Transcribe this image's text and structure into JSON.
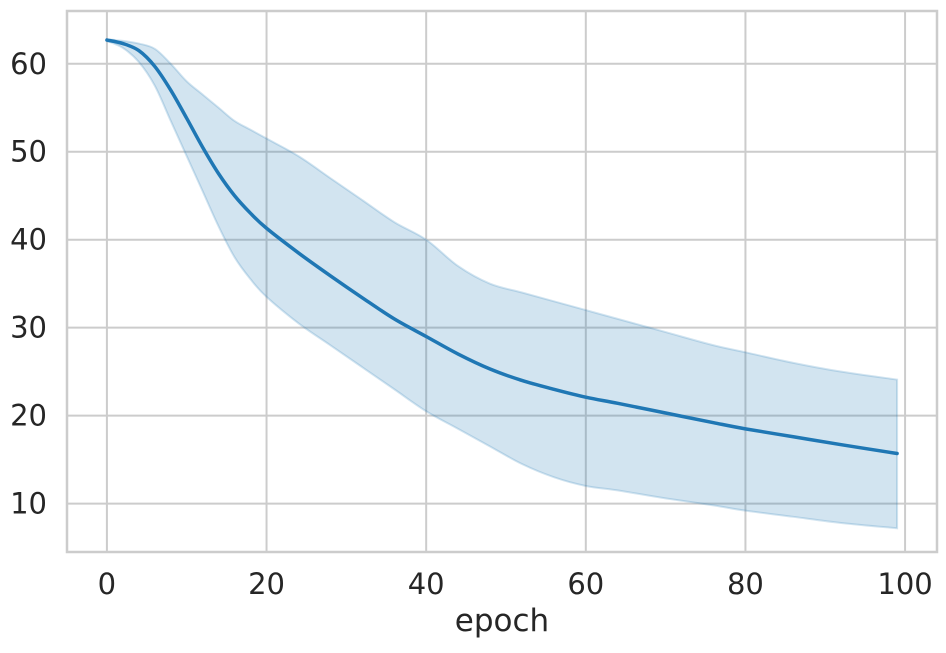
{
  "chart_data": {
    "type": "line",
    "title": "",
    "xlabel": "epoch",
    "ylabel": "",
    "xlim": [
      -5,
      104
    ],
    "ylim": [
      4.5,
      66
    ],
    "xticks": [
      0,
      20,
      40,
      60,
      80,
      100
    ],
    "yticks": [
      10,
      20,
      30,
      40,
      50,
      60
    ],
    "grid": true,
    "legend": "none",
    "series": [
      {
        "color": "#1f77b4",
        "band_color": "#1f77b4",
        "x": [
          0,
          2,
          4,
          6,
          8,
          10,
          12,
          14,
          16,
          18,
          20,
          24,
          28,
          32,
          36,
          40,
          44,
          48,
          52,
          56,
          60,
          64,
          70,
          76,
          80,
          86,
          92,
          99
        ],
        "y": [
          62.7,
          62.3,
          61.5,
          59.7,
          57.0,
          53.8,
          50.5,
          47.5,
          45.0,
          43.0,
          41.3,
          38.5,
          35.9,
          33.4,
          31.0,
          29.0,
          27.0,
          25.3,
          24.0,
          23.0,
          22.1,
          21.4,
          20.3,
          19.2,
          18.5,
          17.6,
          16.7,
          15.7
        ],
        "lower": [
          62.6,
          61.8,
          60.2,
          57.5,
          53.5,
          49.5,
          45.5,
          41.5,
          38.0,
          35.5,
          33.5,
          30.5,
          28.0,
          25.5,
          23.0,
          20.5,
          18.5,
          16.5,
          14.5,
          13.0,
          12.0,
          11.5,
          10.6,
          9.8,
          9.2,
          8.5,
          7.8,
          7.2
        ],
        "upper": [
          62.8,
          62.6,
          62.3,
          61.7,
          60.0,
          58.0,
          56.5,
          55.0,
          53.5,
          52.5,
          51.5,
          49.5,
          47.0,
          44.5,
          42.0,
          40.0,
          37.0,
          35.0,
          34.0,
          33.0,
          32.0,
          31.0,
          29.5,
          28.0,
          27.2,
          26.0,
          25.0,
          24.1
        ]
      }
    ]
  }
}
